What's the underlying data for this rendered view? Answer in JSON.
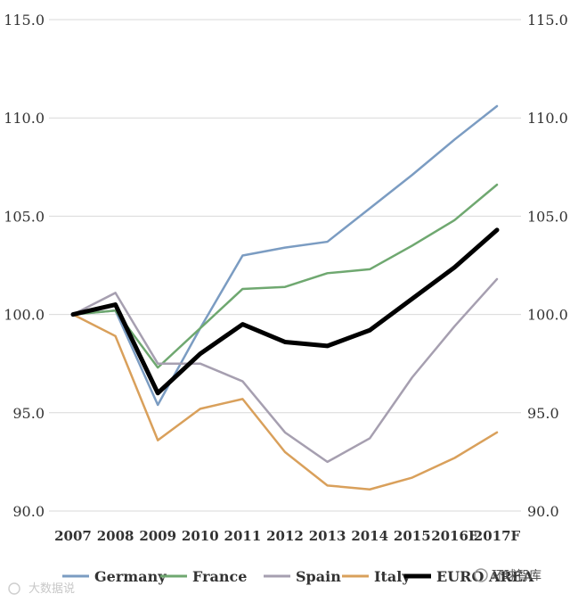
{
  "chart_data": {
    "type": "line",
    "categories": [
      "2007",
      "2008",
      "2009",
      "2010",
      "2011",
      "2012",
      "2013",
      "2014",
      "2015",
      "2016F",
      "2017F"
    ],
    "ylim": [
      90.0,
      115.0
    ],
    "yticks": [
      "90.0",
      "95.0",
      "100.0",
      "105.0",
      "110.0",
      "115.0"
    ],
    "grid": true,
    "legend_position": "bottom",
    "series": [
      {
        "name": "Germany",
        "color": "#7b9cc2",
        "values": [
          100.0,
          100.2,
          95.4,
          99.3,
          103.0,
          103.4,
          103.7,
          105.4,
          107.1,
          108.9,
          110.6
        ]
      },
      {
        "name": "France",
        "color": "#6fa870",
        "values": [
          100.0,
          100.2,
          97.3,
          99.3,
          101.3,
          101.4,
          102.1,
          102.3,
          103.5,
          104.8,
          106.6
        ]
      },
      {
        "name": "Spain",
        "color": "#a69fb0",
        "values": [
          100.0,
          101.1,
          97.5,
          97.5,
          96.6,
          94.0,
          92.5,
          93.7,
          96.8,
          99.4,
          101.8
        ]
      },
      {
        "name": "Italy",
        "color": "#d9a05b",
        "values": [
          100.0,
          98.9,
          93.6,
          95.2,
          95.7,
          93.0,
          91.3,
          91.1,
          91.7,
          92.7,
          94.0
        ]
      },
      {
        "name": "EURO AREA",
        "color": "#000000",
        "values": [
          100.0,
          100.5,
          96.0,
          98.0,
          99.5,
          98.6,
          98.4,
          99.2,
          100.8,
          102.4,
          104.3
        ]
      }
    ]
  },
  "watermarks": {
    "left": "大数据说",
    "right": "环球智库"
  }
}
